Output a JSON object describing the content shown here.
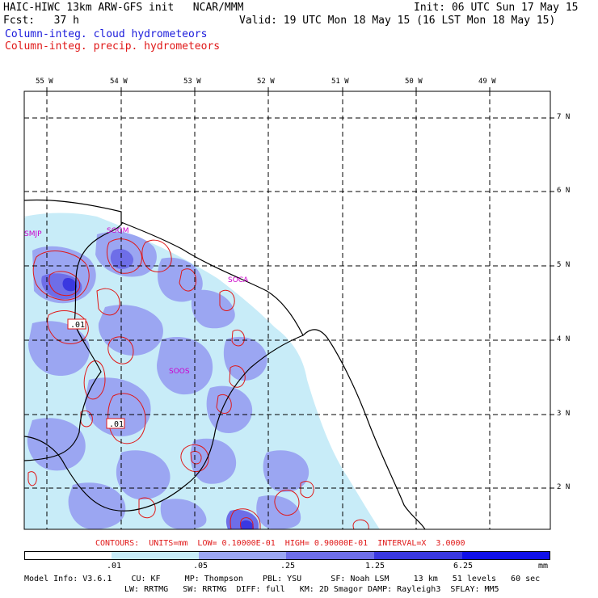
{
  "header": {
    "line1_left": "HAIC-HIWC 13km ARW-GFS init   NCAR/MMM",
    "line1_right": "Init: 06 UTC Sun 17 May 15",
    "line2_left": "Fcst:   37 h",
    "line2_right": "Valid: 19 UTC Mon 18 May 15 (16 LST Mon 18 May 15)",
    "legend_cloud": "Column-integ. cloud hydrometeors",
    "legend_precip": "Column-integ. precip. hydrometeors"
  },
  "colors": {
    "cloud": "#1a1adb",
    "precip": "#e01818",
    "station": "#cc00cc",
    "fill_levels": [
      "#ffffff",
      "#c8ecf8",
      "#9ba6f2",
      "#6e6ee8",
      "#3a38e0",
      "#1010e8"
    ]
  },
  "map": {
    "longitudes": [
      "55 W",
      "54 W",
      "53 W",
      "52 W",
      "51 W",
      "50 W",
      "49 W"
    ],
    "latitudes": [
      "7 N",
      "6 N",
      "5 N",
      "4 N",
      "3 N",
      "2 N"
    ],
    "stations": [
      "SMJP",
      "SOGM",
      "SOCA",
      "SOOS"
    ],
    "contour_labels": [
      ".01",
      ".01"
    ]
  },
  "footer": {
    "contours_line": "CONTOURS:  UNITS=mm  LOW= 0.10000E-01  HIGH= 0.90000E-01  INTERVAL=X  3.0000",
    "colorbar_labels": [
      ".01",
      ".05",
      ".25",
      "1.25",
      "6.25"
    ],
    "colorbar_unit": "mm",
    "model_info_1": "Model Info: V3.6.1    CU: KF     MP: Thompson    PBL: YSU      SF: Noah LSM     13 km   51 levels   60 sec",
    "model_info_2": "LW: RRTMG   SW: RRTMG  DIFF: full   KM: 2D Smagor DAMP: Rayleigh3  SFLAY: MM5"
  }
}
